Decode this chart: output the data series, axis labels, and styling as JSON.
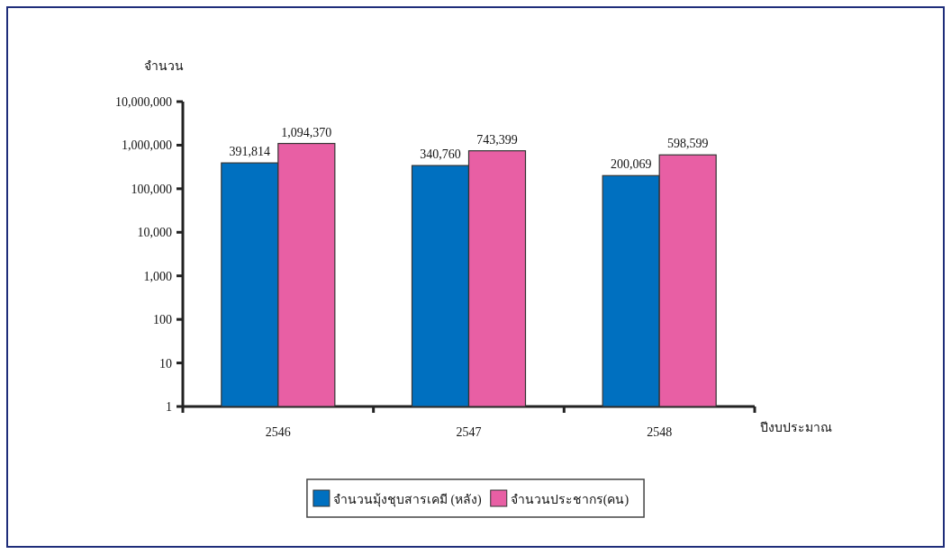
{
  "chart_data": {
    "type": "bar",
    "ylabel": "จำนวน",
    "xlabel": "ปีงบประมาณ",
    "categories": [
      "2546",
      "2547",
      "2548"
    ],
    "series": [
      {
        "name": "จำนวนมุ้งชุบสารเคมี (หลัง)",
        "color": "#0070c0",
        "values": [
          391814,
          340760,
          200069
        ],
        "value_labels": [
          "391,814",
          "340,760",
          "200,069"
        ]
      },
      {
        "name": "จำนวนประชากร(คน)",
        "color": "#e85fa4",
        "values": [
          1094370,
          743399,
          598599
        ],
        "value_labels": [
          "1,094,370",
          "743,399",
          "598,599"
        ]
      }
    ],
    "log": true,
    "ylim": [
      1,
      10000000
    ],
    "yticks": [
      {
        "value": 1,
        "label": "1"
      },
      {
        "value": 10,
        "label": "10"
      },
      {
        "value": 100,
        "label": "100"
      },
      {
        "value": 1000,
        "label": "1,000"
      },
      {
        "value": 10000,
        "label": "10,000"
      },
      {
        "value": 100000,
        "label": "100,000"
      },
      {
        "value": 1000000,
        "label": "1,000,000"
      },
      {
        "value": 10000000,
        "label": "10,000,000"
      }
    ],
    "legend": "bottom"
  }
}
